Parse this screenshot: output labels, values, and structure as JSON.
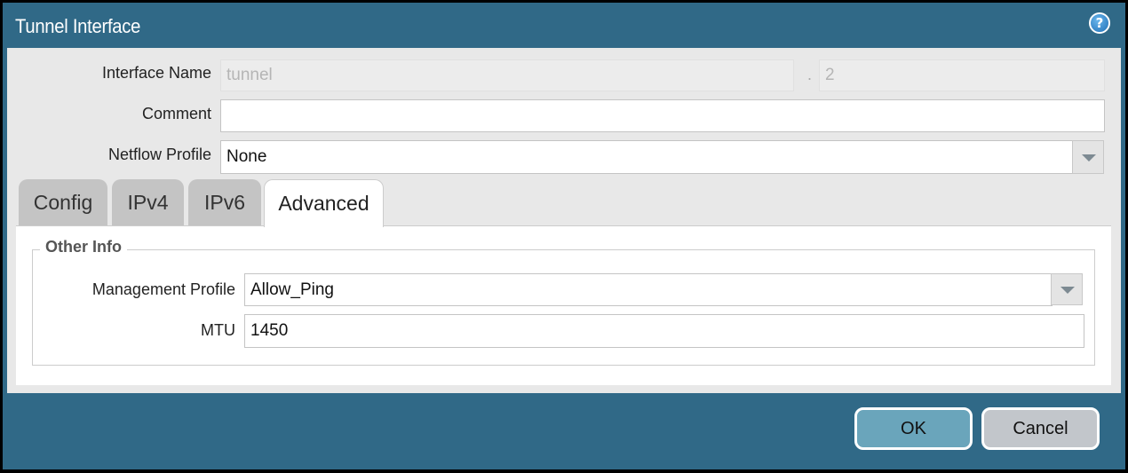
{
  "window": {
    "title": "Tunnel Interface",
    "help_icon": "help-circle-icon"
  },
  "form": {
    "interface_name": {
      "label": "Interface Name",
      "value": "tunnel",
      "separator": ".",
      "suffix": "2"
    },
    "comment": {
      "label": "Comment",
      "value": ""
    },
    "netflow_profile": {
      "label": "Netflow Profile",
      "value": "None"
    }
  },
  "tabs": [
    {
      "label": "Config"
    },
    {
      "label": "IPv4"
    },
    {
      "label": "IPv6"
    },
    {
      "label": "Advanced",
      "active": true
    }
  ],
  "advanced": {
    "section_title": "Other Info",
    "management_profile": {
      "label": "Management Profile",
      "value": "Allow_Ping"
    },
    "mtu": {
      "label": "MTU",
      "value": "1450"
    }
  },
  "buttons": {
    "ok": "OK",
    "cancel": "Cancel"
  },
  "colors": {
    "header": "#306987",
    "ok_button": "#6aa5bb",
    "cancel_button": "#c2c6cb"
  }
}
